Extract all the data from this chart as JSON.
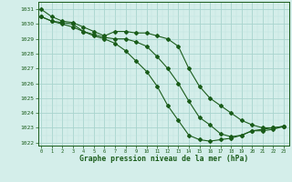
{
  "title": "Graphe pression niveau de la mer (hPa)",
  "hours": [
    0,
    1,
    2,
    3,
    4,
    5,
    6,
    7,
    8,
    9,
    10,
    11,
    12,
    13,
    14,
    15,
    16,
    17,
    18,
    19,
    20,
    21,
    22,
    23
  ],
  "ylim": [
    1021.8,
    1031.5
  ],
  "yticks": [
    1022,
    1023,
    1024,
    1025,
    1026,
    1027,
    1028,
    1029,
    1030,
    1031
  ],
  "xlim": [
    -0.3,
    23.5
  ],
  "line_color": "#1a5c1a",
  "bg_color": "#d4eeea",
  "grid_major_color": "#a8d4ce",
  "grid_minor_color": "#c0e4de",
  "series": [
    [
      1031.0,
      1030.5,
      1030.2,
      1030.1,
      1029.8,
      1029.5,
      1029.2,
      1029.5,
      1029.5,
      1029.4,
      1029.4,
      1029.2,
      1029.0,
      1028.5,
      1027.0,
      1025.8,
      1025.0,
      1024.5,
      1024.0,
      1023.5,
      1023.2,
      1023.0,
      1023.0,
      1023.1
    ],
    [
      1030.5,
      1030.2,
      1030.1,
      1030.0,
      1029.5,
      1029.3,
      1029.1,
      1029.0,
      1029.0,
      1028.8,
      1028.5,
      1027.8,
      1027.0,
      1026.0,
      1024.8,
      1023.7,
      1023.2,
      1022.6,
      1022.4,
      1022.5,
      1022.8,
      1022.9,
      1023.0,
      1023.1
    ],
    [
      1030.5,
      1030.2,
      1030.0,
      1029.8,
      1029.5,
      1029.2,
      1029.0,
      1028.7,
      1028.2,
      1027.5,
      1026.8,
      1025.8,
      1024.5,
      1023.5,
      1022.5,
      1022.2,
      1022.1,
      1022.2,
      1022.3,
      1022.5,
      1022.8,
      1022.8,
      1022.9,
      1023.1
    ]
  ]
}
